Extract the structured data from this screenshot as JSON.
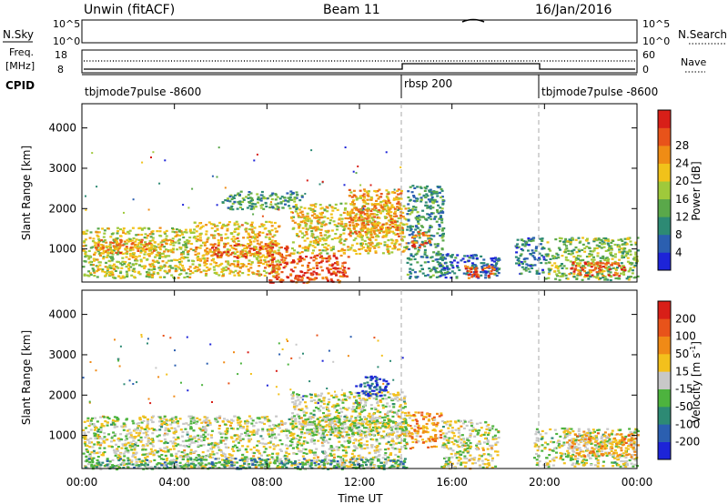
{
  "header": {
    "station": "Unwin (fitACF)",
    "beam": "Beam 11",
    "date": "16/Jan/2016"
  },
  "strip": {
    "nsky_label": "N.Sky",
    "nsearch_label": "N.Search",
    "nsky_ticks": [
      "10^5",
      "10^0"
    ],
    "nsearch_ticks": [
      "10^5",
      "10^0"
    ],
    "freq_label_1": "Freq.",
    "freq_label_2": "[MHz]",
    "freq_ticks": [
      "18",
      "8"
    ],
    "nave_ticks": [
      "60",
      "0"
    ],
    "nave_label": "Nave",
    "cpid_label": "CPID",
    "cpid_segments": [
      {
        "label": "tbjmode7pulse -8600",
        "start_hour": 0,
        "end_hour": 14
      },
      {
        "label": "rbsp 200",
        "start_hour": 14,
        "end_hour": 20
      },
      {
        "label": "tbjmode7pulse -8600",
        "start_hour": 20,
        "end_hour": 24
      }
    ]
  },
  "chart_data": [
    {
      "type": "heatmap",
      "title": "Power",
      "ylabel": "Slant Range [km]",
      "xlabel": "",
      "xlim_hours": [
        0,
        24
      ],
      "ylim": [
        180,
        4600
      ],
      "yticks": [
        "1000",
        "2000",
        "3000",
        "4000"
      ],
      "colorbar_label": "Power [dB]",
      "colorbar_ticks": [
        "4",
        "8",
        "12",
        "16",
        "20",
        "24",
        "28"
      ],
      "colorbar_colors": [
        "#1d24d8",
        "#2b5fb0",
        "#2d8a74",
        "#5aa84a",
        "#9fc93b",
        "#f1c21a",
        "#ef8c15",
        "#e8531a",
        "#d81f18"
      ],
      "regions": [
        {
          "t0": 0.0,
          "t1": 4.8,
          "r0": 300,
          "r1": 1550,
          "level": 0.55
        },
        {
          "t0": 0.5,
          "t1": 4.0,
          "r0": 900,
          "r1": 1250,
          "level": 0.72
        },
        {
          "t0": 4.8,
          "t1": 8.5,
          "r0": 350,
          "r1": 1700,
          "level": 0.62
        },
        {
          "t0": 5.5,
          "t1": 9.0,
          "r0": 800,
          "r1": 1150,
          "level": 0.82
        },
        {
          "t0": 8.0,
          "t1": 11.5,
          "r0": 180,
          "r1": 900,
          "level": 0.85
        },
        {
          "t0": 9.0,
          "t1": 14.0,
          "r0": 900,
          "r1": 2150,
          "level": 0.6
        },
        {
          "t0": 11.5,
          "t1": 13.8,
          "r0": 1300,
          "r1": 2500,
          "level": 0.7
        },
        {
          "t0": 6.0,
          "t1": 9.5,
          "r0": 2000,
          "r1": 2450,
          "level": 0.35
        },
        {
          "t0": 14.0,
          "t1": 15.6,
          "r0": 300,
          "r1": 2600,
          "level": 0.3
        },
        {
          "t0": 14.2,
          "t1": 15.0,
          "r0": 1050,
          "r1": 1450,
          "level": 0.78
        },
        {
          "t0": 15.4,
          "t1": 18.0,
          "r0": 300,
          "r1": 900,
          "level": 0.2
        },
        {
          "t0": 16.5,
          "t1": 17.8,
          "r0": 300,
          "r1": 600,
          "level": 0.85
        },
        {
          "t0": 18.7,
          "t1": 20.0,
          "r0": 400,
          "r1": 1300,
          "level": 0.25
        },
        {
          "t0": 20.0,
          "t1": 24.0,
          "r0": 250,
          "r1": 1300,
          "level": 0.45
        },
        {
          "t0": 21.0,
          "t1": 23.5,
          "r0": 350,
          "r1": 700,
          "level": 0.82
        }
      ]
    },
    {
      "type": "heatmap",
      "title": "Velocity",
      "ylabel": "Slant Range [km]",
      "xlabel": "Time UT",
      "xlim_hours": [
        0,
        24
      ],
      "ylim": [
        180,
        4600
      ],
      "yticks": [
        "1000",
        "2000",
        "3000",
        "4000"
      ],
      "xticks": [
        "00:00",
        "04:00",
        "08:00",
        "12:00",
        "16:00",
        "20:00",
        "00:00"
      ],
      "colorbar_label": "Velocity [m s",
      "colorbar_unit_sup": "-1",
      "colorbar_ticks": [
        "200",
        "100",
        "50",
        "15",
        "-15",
        "-50",
        "-100",
        "-200"
      ],
      "colorbar_colors": [
        "#1d24d8",
        "#2b5fb0",
        "#2d8a74",
        "#4db33e",
        "#c8c8c8",
        "#f3c01c",
        "#f08a16",
        "#e8531a",
        "#d81f18"
      ],
      "regions": [
        {
          "t0": 0.0,
          "t1": 14.0,
          "r0": 200,
          "r1": 1500,
          "level": 0.5
        },
        {
          "t0": 9.0,
          "t1": 14.0,
          "r0": 1000,
          "r1": 2100,
          "level": 0.5
        },
        {
          "t0": 0.0,
          "t1": 14.0,
          "r0": 180,
          "r1": 450,
          "level": 0.33
        },
        {
          "t0": 14.0,
          "t1": 15.5,
          "r0": 700,
          "r1": 1600,
          "level": 0.7
        },
        {
          "t0": 15.5,
          "t1": 18.0,
          "r0": 200,
          "r1": 1400,
          "level": 0.5
        },
        {
          "t0": 19.5,
          "t1": 24.0,
          "r0": 250,
          "r1": 1200,
          "level": 0.5
        },
        {
          "t0": 11.8,
          "t1": 13.2,
          "r0": 2000,
          "r1": 2500,
          "level": 0.1
        },
        {
          "t0": 21.0,
          "t1": 24.0,
          "r0": 500,
          "r1": 1100,
          "level": 0.65
        }
      ]
    }
  ]
}
